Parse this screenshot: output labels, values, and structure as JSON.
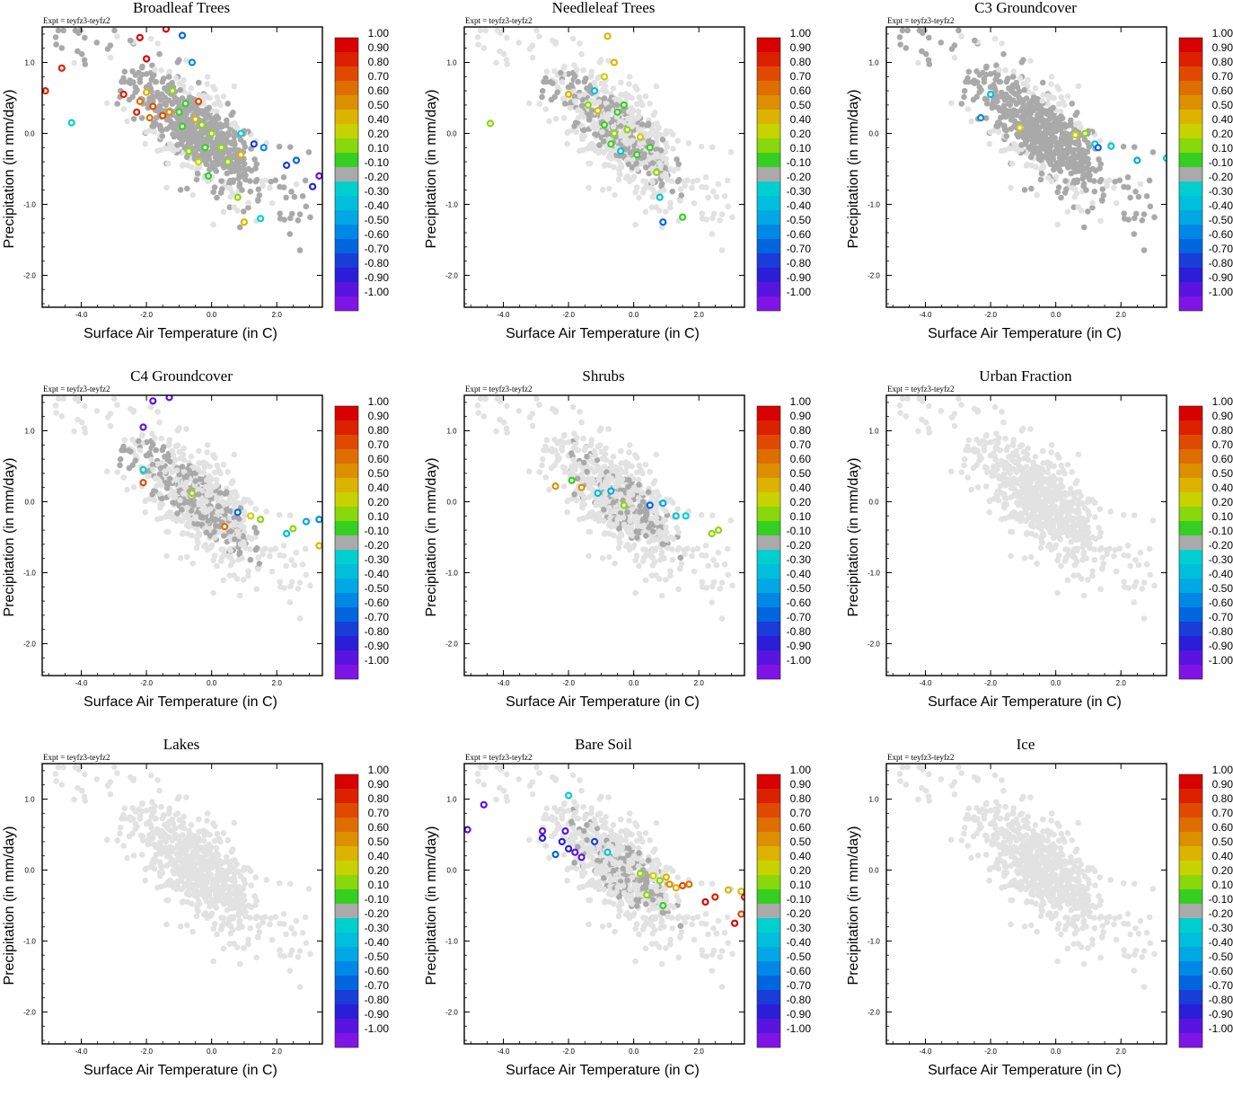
{
  "expt_label": "Expt = teyfz3-teyfz2",
  "axes": {
    "xlabel": "Surface Air Temperature (in C)",
    "ylabel": "Precipitation (in mm/day)",
    "xlim": [
      -5.2,
      3.4
    ],
    "ylim": [
      -2.45,
      1.5
    ],
    "xticks": [
      -4.0,
      -2.0,
      0.0,
      2.0
    ],
    "xtick_labels": [
      "-4.0",
      "-2.0",
      "0.0",
      "2.0"
    ],
    "yticks": [
      1.0,
      0.0,
      -1.0,
      -2.0
    ],
    "ytick_labels": [
      "1.0",
      "0.0",
      "-1.0",
      "-2.0"
    ]
  },
  "colorbar": {
    "labels": [
      "1.00",
      "0.90",
      "0.80",
      "0.70",
      "0.60",
      "0.50",
      "0.40",
      "0.20",
      "0.10",
      "-0.10",
      "-0.20",
      "-0.30",
      "-0.40",
      "-0.50",
      "-0.60",
      "-0.70",
      "-0.80",
      "-0.90",
      "-1.00"
    ],
    "colors": [
      "#d90000",
      "#dc2000",
      "#e04a00",
      "#df6e00",
      "#dc9000",
      "#dcb400",
      "#c8d200",
      "#88d80c",
      "#35cf22",
      "#aaaaaa",
      "#00cfcf",
      "#00bfdc",
      "#00a8e4",
      "#0088e6",
      "#0066e0",
      "#1a3cd8",
      "#2a1ed8",
      "#5a14e0",
      "#8014e6"
    ]
  },
  "colors": {
    "background_points": "#e2e2e2",
    "mid_points": "#a9a9a9"
  },
  "panels": [
    {
      "title": "Broadleaf Trees",
      "gray_band": "dark"
    },
    {
      "title": "Needleleaf Trees",
      "gray_band": "mixed"
    },
    {
      "title": "C3 Groundcover",
      "gray_band": "dark"
    },
    {
      "title": "C4 Groundcover",
      "gray_band": "mixed"
    },
    {
      "title": "Shrubs",
      "gray_band": "light"
    },
    {
      "title": "Urban Fraction",
      "gray_band": "none"
    },
    {
      "title": "Lakes",
      "gray_band": "none"
    },
    {
      "title": "Bare Soil",
      "gray_band": "light"
    },
    {
      "title": "Ice",
      "gray_band": "none"
    }
  ],
  "chart_data": [
    {
      "type": "scatter",
      "title": "Broadleaf Trees",
      "xlabel": "Surface Air Temperature (in C)",
      "ylabel": "Precipitation (in mm/day)",
      "colored_points": [
        {
          "x": -1.4,
          "y": 1.47,
          "c": 1.0
        },
        {
          "x": -0.9,
          "y": 1.38,
          "c": -0.6
        },
        {
          "x": -2.2,
          "y": 1.35,
          "c": 1.0
        },
        {
          "x": -0.6,
          "y": 1.0,
          "c": -0.5
        },
        {
          "x": -4.6,
          "y": 0.92,
          "c": 0.9
        },
        {
          "x": -2.0,
          "y": 1.05,
          "c": 1.0
        },
        {
          "x": -5.1,
          "y": 0.6,
          "c": 0.95
        },
        {
          "x": -2.7,
          "y": 0.55,
          "c": 0.9
        },
        {
          "x": -2.0,
          "y": 0.58,
          "c": 0.5
        },
        {
          "x": -2.2,
          "y": 0.45,
          "c": 0.7
        },
        {
          "x": -1.8,
          "y": 0.38,
          "c": 0.8
        },
        {
          "x": -2.3,
          "y": 0.3,
          "c": 0.9
        },
        {
          "x": -1.9,
          "y": 0.22,
          "c": 0.7
        },
        {
          "x": -1.5,
          "y": 0.25,
          "c": 0.8
        },
        {
          "x": -1.3,
          "y": 0.3,
          "c": 0.6
        },
        {
          "x": -1.2,
          "y": 0.6,
          "c": 0.2
        },
        {
          "x": -0.8,
          "y": 0.42,
          "c": 0.1
        },
        {
          "x": -0.4,
          "y": 0.45,
          "c": 0.85
        },
        {
          "x": -1.0,
          "y": 0.3,
          "c": 0.1
        },
        {
          "x": -0.9,
          "y": 0.1,
          "c": 0.1
        },
        {
          "x": -0.5,
          "y": 0.2,
          "c": 0.5
        },
        {
          "x": -0.3,
          "y": 0.12,
          "c": 0.2
        },
        {
          "x": -0.2,
          "y": -0.2,
          "c": 0.1
        },
        {
          "x": -0.7,
          "y": -0.25,
          "c": 0.2
        },
        {
          "x": -0.4,
          "y": -0.4,
          "c": 0.4
        },
        {
          "x": 0.0,
          "y": 0.0,
          "c": 0.2
        },
        {
          "x": 0.3,
          "y": -0.2,
          "c": 0.2
        },
        {
          "x": 0.5,
          "y": -0.4,
          "c": 0.3
        },
        {
          "x": -0.1,
          "y": -0.6,
          "c": 0.15
        },
        {
          "x": 0.9,
          "y": -0.3,
          "c": 0.5
        },
        {
          "x": 0.8,
          "y": -0.9,
          "c": 0.3
        },
        {
          "x": 1.0,
          "y": -1.25,
          "c": 0.5
        },
        {
          "x": 0.9,
          "y": 0.0,
          "c": -0.2
        },
        {
          "x": 1.3,
          "y": -0.15,
          "c": -0.7
        },
        {
          "x": 1.6,
          "y": -0.2,
          "c": -0.5
        },
        {
          "x": 1.5,
          "y": -1.2,
          "c": -0.2
        },
        {
          "x": 2.3,
          "y": -0.45,
          "c": -0.75
        },
        {
          "x": 2.6,
          "y": -0.38,
          "c": -0.6
        },
        {
          "x": 3.1,
          "y": -0.75,
          "c": -0.85
        },
        {
          "x": 3.3,
          "y": -0.6,
          "c": -0.9
        },
        {
          "x": -4.3,
          "y": 0.15,
          "c": -0.2
        }
      ]
    },
    {
      "type": "scatter",
      "title": "Needleleaf Trees",
      "xlabel": "Surface Air Temperature (in C)",
      "ylabel": "Precipitation (in mm/day)",
      "colored_points": [
        {
          "x": -0.8,
          "y": 1.37,
          "c": 0.5
        },
        {
          "x": -0.6,
          "y": 1.0,
          "c": 0.5
        },
        {
          "x": -0.9,
          "y": 0.8,
          "c": 0.4
        },
        {
          "x": -2.0,
          "y": 0.55,
          "c": 0.5
        },
        {
          "x": -1.2,
          "y": 0.6,
          "c": -0.3
        },
        {
          "x": -1.4,
          "y": 0.4,
          "c": 0.2
        },
        {
          "x": -1.1,
          "y": 0.32,
          "c": 0.5
        },
        {
          "x": -0.5,
          "y": 0.3,
          "c": 0.1
        },
        {
          "x": -0.9,
          "y": 0.12,
          "c": 0.1
        },
        {
          "x": -0.6,
          "y": 0.0,
          "c": 0.2
        },
        {
          "x": -0.2,
          "y": 0.05,
          "c": 0.2
        },
        {
          "x": 0.2,
          "y": -0.05,
          "c": 0.4
        },
        {
          "x": -0.4,
          "y": -0.25,
          "c": -0.3
        },
        {
          "x": 0.1,
          "y": -0.3,
          "c": 0.15
        },
        {
          "x": 0.7,
          "y": -0.55,
          "c": 0.2
        },
        {
          "x": -4.4,
          "y": 0.14,
          "c": 0.3
        },
        {
          "x": 0.9,
          "y": -1.25,
          "c": -0.6
        },
        {
          "x": 1.5,
          "y": -1.18,
          "c": 0.15
        },
        {
          "x": 0.5,
          "y": -0.2,
          "c": 0.1
        },
        {
          "x": -0.3,
          "y": 0.4,
          "c": 0.1
        },
        {
          "x": 0.8,
          "y": -0.9,
          "c": -0.3
        },
        {
          "x": -0.7,
          "y": -0.15,
          "c": 0.1
        }
      ]
    },
    {
      "type": "scatter",
      "title": "C3 Groundcover",
      "xlabel": "Surface Air Temperature (in C)",
      "ylabel": "Precipitation (in mm/day)",
      "colored_points": [
        {
          "x": -2.0,
          "y": 0.55,
          "c": -0.3
        },
        {
          "x": -2.3,
          "y": 0.22,
          "c": -0.5
        },
        {
          "x": -1.1,
          "y": 0.08,
          "c": 0.4
        },
        {
          "x": 0.6,
          "y": -0.02,
          "c": 0.4
        },
        {
          "x": 0.9,
          "y": 0.0,
          "c": 0.2
        },
        {
          "x": 1.2,
          "y": -0.15,
          "c": -0.3
        },
        {
          "x": 1.3,
          "y": -0.2,
          "c": -0.6
        },
        {
          "x": 1.7,
          "y": -0.18,
          "c": -0.3
        },
        {
          "x": 2.5,
          "y": -0.38,
          "c": -0.4
        },
        {
          "x": 3.4,
          "y": -0.35,
          "c": -0.25
        }
      ]
    },
    {
      "type": "scatter",
      "title": "C4 Groundcover",
      "xlabel": "Surface Air Temperature (in C)",
      "ylabel": "Precipitation (in mm/day)",
      "colored_points": [
        {
          "x": -1.3,
          "y": 1.47,
          "c": -0.9
        },
        {
          "x": -1.8,
          "y": 1.42,
          "c": -0.9
        },
        {
          "x": -2.1,
          "y": 1.05,
          "c": -0.9
        },
        {
          "x": -2.1,
          "y": 0.45,
          "c": -0.25
        },
        {
          "x": -2.1,
          "y": 0.27,
          "c": 0.75
        },
        {
          "x": -0.6,
          "y": 0.12,
          "c": 0.2
        },
        {
          "x": 0.8,
          "y": -0.15,
          "c": -0.6
        },
        {
          "x": 0.4,
          "y": -0.35,
          "c": 0.7
        },
        {
          "x": 1.2,
          "y": -0.2,
          "c": 0.4
        },
        {
          "x": 1.5,
          "y": -0.25,
          "c": 0.3
        },
        {
          "x": 2.3,
          "y": -0.45,
          "c": -0.3
        },
        {
          "x": 2.5,
          "y": -0.38,
          "c": 0.3
        },
        {
          "x": 2.9,
          "y": -0.28,
          "c": -0.4
        },
        {
          "x": 3.3,
          "y": -0.25,
          "c": -0.5
        },
        {
          "x": 3.3,
          "y": -0.62,
          "c": 0.5
        }
      ]
    },
    {
      "type": "scatter",
      "title": "Shrubs",
      "xlabel": "Surface Air Temperature (in C)",
      "ylabel": "Precipitation (in mm/day)",
      "colored_points": [
        {
          "x": -2.4,
          "y": 0.22,
          "c": 0.6
        },
        {
          "x": -1.9,
          "y": 0.3,
          "c": 0.1
        },
        {
          "x": -1.6,
          "y": 0.2,
          "c": 0.6
        },
        {
          "x": -1.1,
          "y": 0.12,
          "c": -0.3
        },
        {
          "x": -0.7,
          "y": 0.15,
          "c": -0.4
        },
        {
          "x": -0.3,
          "y": -0.05,
          "c": 0.2
        },
        {
          "x": 0.5,
          "y": -0.05,
          "c": -0.6
        },
        {
          "x": 0.9,
          "y": -0.02,
          "c": -0.4
        },
        {
          "x": 1.3,
          "y": -0.2,
          "c": -0.3
        },
        {
          "x": 1.6,
          "y": -0.2,
          "c": -0.25
        },
        {
          "x": 2.4,
          "y": -0.45,
          "c": 0.3
        },
        {
          "x": 2.6,
          "y": -0.4,
          "c": 0.2
        }
      ]
    },
    {
      "type": "scatter",
      "title": "Urban Fraction",
      "xlabel": "Surface Air Temperature (in C)",
      "ylabel": "Precipitation (in mm/day)",
      "colored_points": []
    },
    {
      "type": "scatter",
      "title": "Lakes",
      "xlabel": "Surface Air Temperature (in C)",
      "ylabel": "Precipitation (in mm/day)",
      "colored_points": []
    },
    {
      "type": "scatter",
      "title": "Bare Soil",
      "xlabel": "Surface Air Temperature (in C)",
      "ylabel": "Precipitation (in mm/day)",
      "colored_points": [
        {
          "x": -4.6,
          "y": 0.92,
          "c": -0.9
        },
        {
          "x": -5.1,
          "y": 0.57,
          "c": -0.95
        },
        {
          "x": -2.0,
          "y": 1.05,
          "c": -0.25
        },
        {
          "x": -2.8,
          "y": 0.55,
          "c": -0.9
        },
        {
          "x": -2.8,
          "y": 0.45,
          "c": -0.85
        },
        {
          "x": -2.1,
          "y": 0.55,
          "c": -0.9
        },
        {
          "x": -2.2,
          "y": 0.4,
          "c": -0.8
        },
        {
          "x": -2.0,
          "y": 0.3,
          "c": -0.85
        },
        {
          "x": -1.8,
          "y": 0.25,
          "c": -0.95
        },
        {
          "x": -2.4,
          "y": 0.22,
          "c": -0.6
        },
        {
          "x": -1.6,
          "y": 0.18,
          "c": -0.9
        },
        {
          "x": -1.2,
          "y": 0.4,
          "c": -0.7
        },
        {
          "x": -0.8,
          "y": 0.25,
          "c": -0.3
        },
        {
          "x": 0.2,
          "y": -0.05,
          "c": 0.2
        },
        {
          "x": 0.6,
          "y": -0.08,
          "c": 0.4
        },
        {
          "x": 0.8,
          "y": -0.15,
          "c": 0.2
        },
        {
          "x": 1.0,
          "y": -0.1,
          "c": 0.45
        },
        {
          "x": 1.1,
          "y": -0.2,
          "c": 0.6
        },
        {
          "x": 1.3,
          "y": -0.25,
          "c": 0.5
        },
        {
          "x": 1.5,
          "y": -0.22,
          "c": 0.8
        },
        {
          "x": 1.7,
          "y": -0.2,
          "c": 0.65
        },
        {
          "x": 0.4,
          "y": -0.35,
          "c": 0.2
        },
        {
          "x": 0.9,
          "y": -0.5,
          "c": 0.15
        },
        {
          "x": 2.2,
          "y": -0.45,
          "c": 1.0
        },
        {
          "x": 2.5,
          "y": -0.38,
          "c": 0.95
        },
        {
          "x": 2.9,
          "y": -0.28,
          "c": 0.45
        },
        {
          "x": 3.3,
          "y": -0.3,
          "c": 0.5
        },
        {
          "x": 3.1,
          "y": -0.75,
          "c": 1.0
        },
        {
          "x": 3.3,
          "y": -0.62,
          "c": 0.8
        },
        {
          "x": 3.4,
          "y": -0.38,
          "c": 0.95
        }
      ]
    },
    {
      "type": "scatter",
      "title": "Ice",
      "xlabel": "Surface Air Temperature (in C)",
      "ylabel": "Precipitation (in mm/day)",
      "colored_points": []
    }
  ]
}
